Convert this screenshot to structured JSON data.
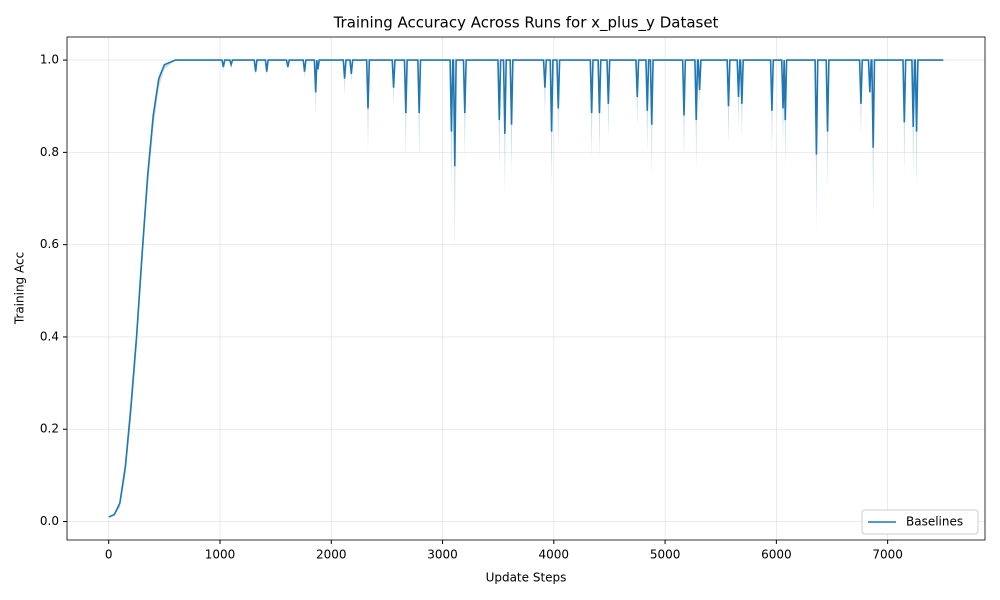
{
  "chart_data": {
    "type": "line",
    "title": "Training Accuracy Across Runs for x_plus_y Dataset",
    "xlabel": "Update Steps",
    "ylabel": "Training Acc",
    "x": [
      0,
      50,
      100,
      150,
      200,
      250,
      300,
      350,
      400,
      450,
      500,
      600,
      700,
      1018,
      1030,
      1042,
      1088,
      1100,
      1112,
      1308,
      1320,
      1332,
      1408,
      1420,
      1432,
      1598,
      1610,
      1622,
      1748,
      1760,
      1772,
      1848,
      1860,
      1870,
      1880,
      1892,
      2108,
      2120,
      2132,
      2168,
      2180,
      2192,
      2318,
      2330,
      2342,
      2548,
      2560,
      2572,
      2658,
      2670,
      2682,
      2778,
      2790,
      2802,
      3068,
      3080,
      3092,
      3098,
      3110,
      3122,
      3188,
      3200,
      3212,
      3498,
      3510,
      3522,
      3548,
      3560,
      3572,
      3608,
      3620,
      3632,
      3908,
      3920,
      3932,
      3968,
      3980,
      3992,
      4028,
      4040,
      4052,
      4328,
      4340,
      4352,
      4398,
      4410,
      4422,
      4478,
      4490,
      4502,
      4738,
      4750,
      4762,
      4828,
      4840,
      4852,
      4868,
      4880,
      4892,
      5158,
      5170,
      5182,
      5268,
      5280,
      5292,
      5298,
      5310,
      5322,
      5558,
      5570,
      5582,
      5648,
      5660,
      5672,
      5678,
      5690,
      5702,
      5948,
      5960,
      5972,
      6048,
      6060,
      6070,
      6080,
      6092,
      6348,
      6360,
      6372,
      6448,
      6460,
      6472,
      6748,
      6760,
      6772,
      6828,
      6840,
      6852,
      6858,
      6870,
      6882,
      7138,
      7150,
      7162,
      7218,
      7230,
      7242,
      7248,
      7260,
      7272,
      7500
    ],
    "series": [
      {
        "name": "Baselines",
        "color": "#1f77b4",
        "values": [
          0.01,
          0.015,
          0.04,
          0.12,
          0.25,
          0.4,
          0.58,
          0.75,
          0.88,
          0.96,
          0.99,
          1.0,
          1.0,
          1,
          0.985,
          1,
          1,
          0.99,
          1,
          1,
          0.975,
          1,
          1,
          0.975,
          1,
          1,
          0.985,
          1,
          1,
          0.975,
          1,
          1,
          0.93,
          1,
          0.98,
          1,
          1,
          0.96,
          1,
          1,
          0.97,
          1,
          1,
          0.895,
          1,
          1,
          0.94,
          1,
          1,
          0.885,
          1,
          1,
          0.885,
          1,
          1,
          0.845,
          1,
          1,
          0.77,
          1,
          1,
          0.885,
          1,
          1,
          0.87,
          1,
          1,
          0.84,
          1,
          1,
          0.86,
          1,
          1,
          0.94,
          1,
          1,
          0.845,
          1,
          1,
          0.895,
          1,
          1,
          0.885,
          1,
          1,
          0.885,
          1,
          1,
          0.905,
          1,
          1,
          0.92,
          1,
          1,
          0.89,
          1,
          1,
          0.86,
          1,
          1,
          0.88,
          1,
          1,
          0.87,
          1,
          1,
          0.935,
          1,
          1,
          0.9,
          1,
          1,
          0.92,
          1,
          1,
          0.905,
          1,
          1,
          0.89,
          1,
          1,
          0.895,
          1,
          0.87,
          1,
          1,
          0.795,
          1,
          1,
          0.845,
          1,
          1,
          0.905,
          1,
          1,
          0.93,
          1,
          1,
          0.81,
          1,
          1,
          0.865,
          1,
          1,
          0.855,
          1,
          1,
          0.845,
          1,
          1
        ],
        "lower": [
          0.01,
          0.013,
          0.03,
          0.1,
          0.22,
          0.37,
          0.55,
          0.72,
          0.85,
          0.94,
          0.98,
          1.0,
          1.0,
          1,
          0.975,
          1,
          1,
          0.985,
          1,
          1,
          0.965,
          1,
          1,
          0.965,
          1,
          1,
          0.98,
          1,
          1,
          0.96,
          1,
          1,
          0.88,
          1,
          0.97,
          1,
          1,
          0.925,
          1,
          1,
          0.95,
          1,
          1,
          0.805,
          1,
          1,
          0.9,
          1,
          1,
          0.79,
          1,
          1,
          0.785,
          1,
          1,
          0.715,
          1,
          1,
          0.58,
          1,
          1,
          0.79,
          1,
          1,
          0.765,
          1,
          1,
          0.71,
          1,
          1,
          0.75,
          1,
          1,
          0.88,
          1,
          1,
          0.72,
          1,
          1,
          0.81,
          1,
          1,
          0.785,
          1,
          1,
          0.785,
          1,
          1,
          0.83,
          1,
          1,
          0.855,
          1,
          1,
          0.8,
          1,
          1,
          0.75,
          1,
          1,
          0.785,
          1,
          1,
          0.765,
          1,
          1,
          0.9,
          1,
          1,
          0.815,
          1,
          1,
          0.855,
          1,
          1,
          0.83,
          1,
          1,
          0.8,
          1,
          1,
          0.815,
          1,
          0.765,
          1,
          1,
          0.63,
          1,
          1,
          0.72,
          1,
          1,
          0.835,
          1,
          1,
          0.93,
          1,
          1,
          0.66,
          1,
          1,
          0.755,
          1,
          1,
          0.74,
          1,
          1,
          0.72,
          1,
          1
        ]
      }
    ],
    "xlim": [
      -375,
      7875
    ],
    "ylim": [
      -0.04,
      1.05
    ],
    "xticks": [
      0,
      1000,
      2000,
      3000,
      4000,
      5000,
      6000,
      7000
    ],
    "yticks": [
      {
        "value": 0,
        "label": "0.0"
      },
      {
        "value": 0.2,
        "label": "0.2"
      },
      {
        "value": 0.4,
        "label": "0.4"
      },
      {
        "value": 0.6,
        "label": "0.6"
      },
      {
        "value": 0.8,
        "label": "0.8"
      },
      {
        "value": 1,
        "label": "1.0"
      }
    ],
    "grid": true,
    "legend": "lower right"
  }
}
